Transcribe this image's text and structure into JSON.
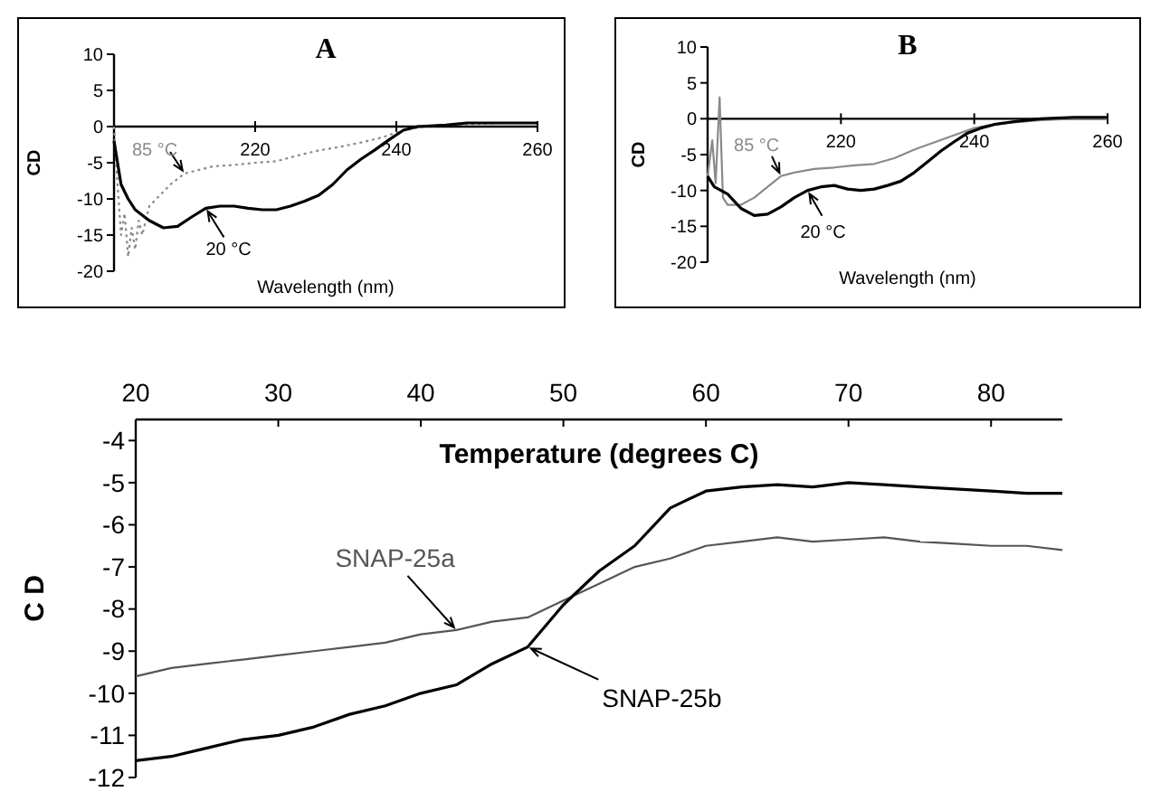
{
  "chart_data": [
    {
      "type": "line",
      "title": "A",
      "xlabel": "Wavelength (nm)",
      "ylabel": "CD",
      "xlim": [
        200,
        260
      ],
      "xticks": [
        220,
        240,
        260
      ],
      "ylim": [
        -20,
        10
      ],
      "yticks": [
        -20,
        -15,
        -10,
        -5,
        0,
        5,
        10
      ],
      "grid": false,
      "marker": "none",
      "series": [
        {
          "name": "85 °C",
          "color": "#8a8a8a",
          "line_style": "dotted",
          "x": [
            200,
            200.5,
            201,
            201.5,
            202,
            202.5,
            203,
            203.5,
            204,
            205,
            206,
            208,
            210,
            212,
            214,
            217,
            220,
            223,
            226,
            229,
            232,
            235,
            238,
            241,
            244,
            250,
            255,
            260
          ],
          "values": [
            0,
            -8,
            -15,
            -12,
            -18,
            -14,
            -17,
            -13,
            -15,
            -11,
            -10,
            -8,
            -6.5,
            -6,
            -5.5,
            -5.3,
            -5,
            -4.8,
            -4,
            -3.3,
            -2.8,
            -2.2,
            -1.5,
            -0.5,
            0,
            0.3,
            0.5,
            0.5
          ]
        },
        {
          "name": "20 °C",
          "color": "#000000",
          "line_style": "solid",
          "x": [
            200,
            200.5,
            201,
            202,
            203,
            205,
            207,
            209,
            211,
            213,
            215,
            217,
            219,
            221,
            223,
            225,
            227,
            229,
            231,
            233,
            235,
            237,
            239,
            241,
            243,
            247,
            250,
            255,
            260
          ],
          "values": [
            -2,
            -5,
            -8,
            -10,
            -11.5,
            -13,
            -14,
            -13.8,
            -12.5,
            -11.3,
            -11,
            -11,
            -11.3,
            -11.5,
            -11.5,
            -11,
            -10.3,
            -9.5,
            -8,
            -6,
            -4.5,
            -3.2,
            -1.8,
            -0.5,
            0,
            0.2,
            0.5,
            0.5,
            0.5
          ]
        }
      ]
    },
    {
      "type": "line",
      "title": "B",
      "xlabel": "Wavelength (nm)",
      "ylabel": "CD",
      "xlim": [
        200,
        260
      ],
      "xticks": [
        220,
        240,
        260
      ],
      "ylim": [
        -20,
        10
      ],
      "yticks": [
        -20,
        -15,
        -10,
        -5,
        0,
        5,
        10
      ],
      "grid": false,
      "marker": "none",
      "series": [
        {
          "name": "85 °C",
          "color": "#8a8a8a",
          "line_style": "solid",
          "x": [
            200,
            200.7,
            201.2,
            201.8,
            202.3,
            203,
            205,
            207,
            209,
            211,
            213,
            216,
            219,
            222,
            225,
            228,
            231,
            234,
            237,
            240,
            243,
            246,
            250,
            255,
            260
          ],
          "values": [
            -8,
            -3,
            -9,
            3,
            -11,
            -12,
            -12,
            -11,
            -9.5,
            -8,
            -7.5,
            -7,
            -6.8,
            -6.5,
            -6.3,
            -5.5,
            -4.3,
            -3.3,
            -2.3,
            -1.3,
            -0.8,
            -0.5,
            -0.2,
            0,
            0
          ]
        },
        {
          "name": "20 °C",
          "color": "#000000",
          "line_style": "solid",
          "x": [
            200,
            201,
            203,
            205,
            207,
            209,
            211,
            213,
            215,
            217,
            219,
            221,
            223,
            225,
            227,
            229,
            231,
            233,
            235,
            237,
            239,
            241,
            243,
            246,
            250,
            255,
            260
          ],
          "values": [
            -8,
            -9.5,
            -10.5,
            -12.5,
            -13.5,
            -13.3,
            -12.3,
            -11,
            -10,
            -9.5,
            -9.3,
            -9.8,
            -10,
            -9.8,
            -9.3,
            -8.7,
            -7.5,
            -6,
            -4.5,
            -3.2,
            -2,
            -1.3,
            -0.8,
            -0.4,
            0,
            0.2,
            0.2
          ]
        }
      ]
    },
    {
      "type": "line",
      "xlabel": "Temperature (degrees C)",
      "ylabel": "C D",
      "xlim": [
        20,
        85
      ],
      "xticks": [
        20,
        30,
        40,
        50,
        60,
        70,
        80
      ],
      "ylim": [
        -12,
        -3.5
      ],
      "yticks": [
        -12,
        -11,
        -10,
        -9,
        -8,
        -7,
        -6,
        -5,
        -4
      ],
      "grid": false,
      "marker": "none",
      "series": [
        {
          "name": "SNAP-25a",
          "color": "#555555",
          "line_style": "solid",
          "x": [
            20,
            22.5,
            25,
            27.5,
            30,
            32.5,
            35,
            37.5,
            40,
            42.5,
            45,
            47.5,
            50,
            52.5,
            55,
            57.5,
            60,
            62.5,
            65,
            67.5,
            70,
            72.5,
            75,
            77.5,
            80,
            82.5,
            85
          ],
          "values": [
            -9.6,
            -9.4,
            -9.3,
            -9.2,
            -9.1,
            -9.0,
            -8.9,
            -8.8,
            -8.6,
            -8.5,
            -8.3,
            -8.2,
            -7.8,
            -7.4,
            -7.0,
            -6.8,
            -6.5,
            -6.4,
            -6.3,
            -6.4,
            -6.35,
            -6.3,
            -6.4,
            -6.45,
            -6.5,
            -6.5,
            -6.6
          ]
        },
        {
          "name": "SNAP-25b",
          "color": "#000000",
          "line_style": "solid",
          "x": [
            20,
            22.5,
            25,
            27.5,
            30,
            32.5,
            35,
            37.5,
            40,
            42.5,
            45,
            47.5,
            50,
            52.5,
            55,
            57.5,
            60,
            62.5,
            65,
            67.5,
            70,
            72.5,
            75,
            77.5,
            80,
            82.5,
            85
          ],
          "values": [
            -11.6,
            -11.5,
            -11.3,
            -11.1,
            -11.0,
            -10.8,
            -10.5,
            -10.3,
            -10.0,
            -9.8,
            -9.3,
            -8.9,
            -7.9,
            -7.1,
            -6.5,
            -5.6,
            -5.2,
            -5.1,
            -5.05,
            -5.1,
            -5.0,
            -5.05,
            -5.1,
            -5.15,
            -5.2,
            -5.25,
            -5.25
          ]
        }
      ]
    }
  ]
}
